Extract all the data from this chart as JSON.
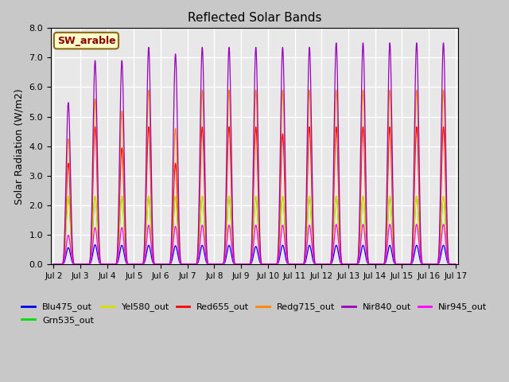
{
  "title": "Reflected Solar Bands",
  "ylabel": "Solar Radiation (W/m2)",
  "ylim": [
    0.0,
    8.0
  ],
  "yticks": [
    0.0,
    1.0,
    2.0,
    3.0,
    4.0,
    5.0,
    6.0,
    7.0,
    8.0
  ],
  "annotation_text": "SW_arable",
  "annotation_color": "#8b0000",
  "annotation_bg": "#ffffcc",
  "annotation_border": "#8b6914",
  "series": [
    {
      "label": "Blu475_out",
      "color": "#0000ee",
      "peak": 0.8
    },
    {
      "label": "Grn535_out",
      "color": "#00dd00",
      "peak": 2.3
    },
    {
      "label": "Yel580_out",
      "color": "#dddd00",
      "peak": 2.3
    },
    {
      "label": "Red655_out",
      "color": "#ff0000",
      "peak": 4.75
    },
    {
      "label": "Redg715_out",
      "color": "#ff8800",
      "peak": 5.9
    },
    {
      "label": "Nir840_out",
      "color": "#9900bb",
      "peak": 7.5
    },
    {
      "label": "Nir945_out",
      "color": "#ff00ff",
      "peak": 1.35
    }
  ],
  "ticks": [
    "Jul 2",
    "Jul 3",
    "Jul 4",
    "Jul 5",
    "Jul 6",
    "Jul 7",
    "Jul 8",
    "Jul 9",
    "Jul 10",
    "Jul 11",
    "Jul 12",
    "Jul 13",
    "Jul 14",
    "Jul 15",
    "Jul 16",
    "Jul 17"
  ],
  "day_peak_scales": {
    "Blu475_out": [
      0.7,
      0.82,
      0.8,
      0.8,
      0.78,
      0.8,
      0.8,
      0.75,
      0.8,
      0.8,
      0.8,
      0.8,
      0.8,
      0.8,
      0.8
    ],
    "Grn535_out": [
      1.0,
      1.0,
      1.0,
      1.0,
      1.0,
      1.0,
      1.0,
      1.0,
      1.0,
      1.0,
      1.0,
      1.0,
      1.0,
      1.0,
      1.0
    ],
    "Yel580_out": [
      1.0,
      1.0,
      1.0,
      1.0,
      1.0,
      1.0,
      1.0,
      1.0,
      1.0,
      1.0,
      1.0,
      1.0,
      1.0,
      1.0,
      1.0
    ],
    "Red655_out": [
      0.72,
      0.98,
      0.83,
      0.98,
      0.72,
      0.98,
      0.98,
      0.98,
      0.93,
      0.98,
      0.98,
      0.98,
      0.98,
      0.98,
      0.98
    ],
    "Redg715_out": [
      0.72,
      0.95,
      0.88,
      1.0,
      0.78,
      1.0,
      1.0,
      1.0,
      1.0,
      1.0,
      1.0,
      1.0,
      1.0,
      1.0,
      1.0
    ],
    "Nir840_out": [
      0.73,
      0.92,
      0.92,
      0.98,
      0.95,
      0.98,
      0.98,
      0.98,
      0.98,
      0.98,
      1.0,
      1.0,
      1.0,
      1.0,
      1.0
    ],
    "Nir945_out": [
      0.73,
      0.92,
      0.92,
      0.98,
      0.95,
      0.98,
      0.98,
      0.98,
      0.98,
      0.98,
      1.0,
      1.0,
      1.0,
      1.0,
      1.0
    ]
  }
}
